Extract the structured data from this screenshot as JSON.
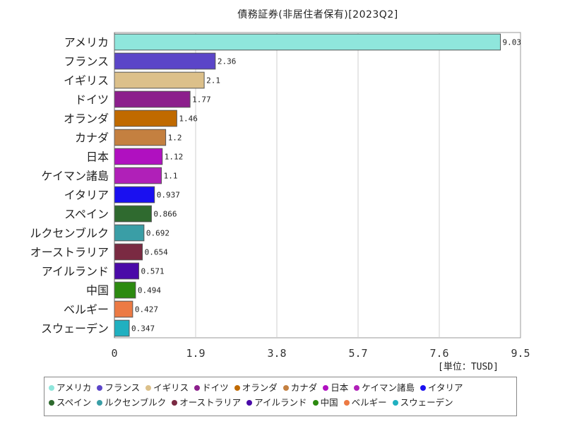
{
  "chart_data": {
    "type": "bar",
    "orientation": "horizontal",
    "title": "債務証券(非居住者保有)[2023Q2]",
    "unit_label": "[単位：TUSD]",
    "xlim": [
      0,
      9.5
    ],
    "x_ticks": [
      "0",
      "1.9",
      "3.8",
      "5.7",
      "7.6",
      "9.5"
    ],
    "grid": true,
    "legend_position": "bottom",
    "categories": [
      "アメリカ",
      "フランス",
      "イギリス",
      "ドイツ",
      "オランダ",
      "カナダ",
      "日本",
      "ケイマン諸島",
      "イタリア",
      "スペイン",
      "ルクセンブルク",
      "オーストラリア",
      "アイルランド",
      "中国",
      "ベルギー",
      "スウェーデン"
    ],
    "values": [
      9.03,
      2.36,
      2.1,
      1.77,
      1.46,
      1.2,
      1.12,
      1.1,
      0.937,
      0.866,
      0.692,
      0.654,
      0.571,
      0.494,
      0.427,
      0.347
    ],
    "value_labels": [
      "9.03",
      "2.36",
      "2.1",
      "1.77",
      "1.46",
      "1.2",
      "1.12",
      "1.1",
      "0.937",
      "0.866",
      "0.692",
      "0.654",
      "0.571",
      "0.494",
      "0.427",
      "0.347"
    ],
    "colors": [
      "#8fe6dc",
      "#5b45c8",
      "#dcc08a",
      "#8c1f8c",
      "#c06a00",
      "#c48040",
      "#b010c0",
      "#b020b8",
      "#1a10f0",
      "#2f6a2f",
      "#3a9ea6",
      "#7a2a42",
      "#4a0aa8",
      "#2c8a10",
      "#ec7a44",
      "#20b0c0"
    ]
  }
}
